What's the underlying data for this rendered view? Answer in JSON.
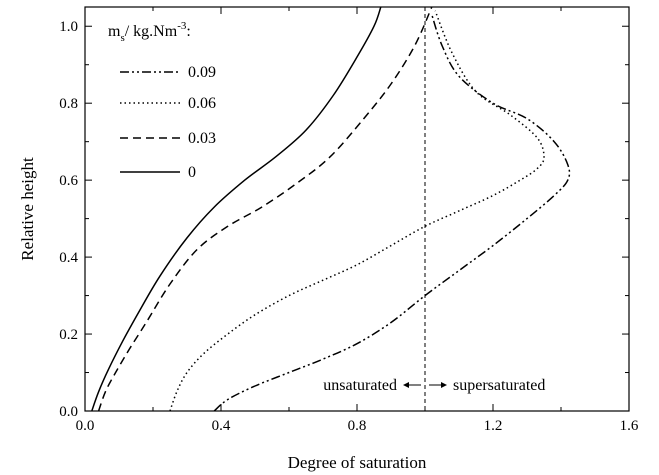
{
  "chart_data": {
    "type": "line",
    "xlabel": "Degree of saturation",
    "ylabel": "Relative height",
    "xlim": [
      0.0,
      1.6
    ],
    "ylim": [
      0.0,
      1.05
    ],
    "xticks": [
      0.0,
      0.4,
      0.8,
      1.2,
      1.6
    ],
    "xtick_labels": [
      "0.0",
      "0.4",
      "0.8",
      "1.2",
      "1.6"
    ],
    "yticks": [
      0.0,
      0.2,
      0.4,
      0.6,
      0.8,
      1.0
    ],
    "ytick_labels": [
      "0.0",
      "0.2",
      "0.4",
      "0.6",
      "0.8",
      "1.0"
    ],
    "grid": false,
    "legend": {
      "placement": "top-left",
      "title_main": "m",
      "title_sub": "s",
      "title_rest": "/ kg.Nm",
      "title_sup": "-3",
      "title_end": ":"
    },
    "series": [
      {
        "name": "0.09",
        "style": "dashdotdot",
        "x": [
          0.38,
          0.42,
          0.5,
          0.6,
          0.7,
          0.8,
          0.9,
          1.0,
          1.1,
          1.2,
          1.3,
          1.38,
          1.42,
          1.42,
          1.38,
          1.3,
          1.2,
          1.1,
          1.05,
          1.02
        ],
        "y": [
          0.0,
          0.03,
          0.065,
          0.1,
          0.135,
          0.175,
          0.23,
          0.3,
          0.365,
          0.43,
          0.5,
          0.56,
          0.6,
          0.64,
          0.7,
          0.76,
          0.8,
          0.87,
          0.95,
          1.03
        ]
      },
      {
        "name": "0.06",
        "style": "dotted",
        "x": [
          0.25,
          0.27,
          0.3,
          0.35,
          0.42,
          0.5,
          0.6,
          0.7,
          0.8,
          0.9,
          1.0,
          1.1,
          1.2,
          1.28,
          1.33,
          1.35,
          1.33,
          1.25,
          1.15,
          1.08,
          1.03
        ],
        "y": [
          0.0,
          0.05,
          0.1,
          0.15,
          0.2,
          0.25,
          0.3,
          0.34,
          0.38,
          0.43,
          0.48,
          0.52,
          0.56,
          0.6,
          0.63,
          0.66,
          0.71,
          0.77,
          0.83,
          0.93,
          1.04
        ]
      },
      {
        "name": "0.03",
        "style": "dashed",
        "x": [
          0.04,
          0.06,
          0.09,
          0.13,
          0.18,
          0.25,
          0.33,
          0.42,
          0.52,
          0.62,
          0.72,
          0.82,
          0.9,
          0.97,
          1.02
        ],
        "y": [
          0.0,
          0.05,
          0.1,
          0.16,
          0.23,
          0.33,
          0.42,
          0.48,
          0.53,
          0.59,
          0.66,
          0.76,
          0.85,
          0.95,
          1.05
        ]
      },
      {
        "name": "0",
        "style": "solid",
        "x": [
          0.02,
          0.04,
          0.07,
          0.11,
          0.16,
          0.22,
          0.3,
          0.38,
          0.47,
          0.56,
          0.65,
          0.73,
          0.8,
          0.85,
          0.87
        ],
        "y": [
          0.0,
          0.05,
          0.11,
          0.18,
          0.26,
          0.35,
          0.45,
          0.53,
          0.6,
          0.66,
          0.73,
          0.82,
          0.92,
          1.0,
          1.05
        ]
      }
    ],
    "reference_line": {
      "x": 1.0,
      "style": "dashed"
    },
    "annotations": {
      "left_text": "unsaturated",
      "right_text": "supersaturated"
    }
  }
}
